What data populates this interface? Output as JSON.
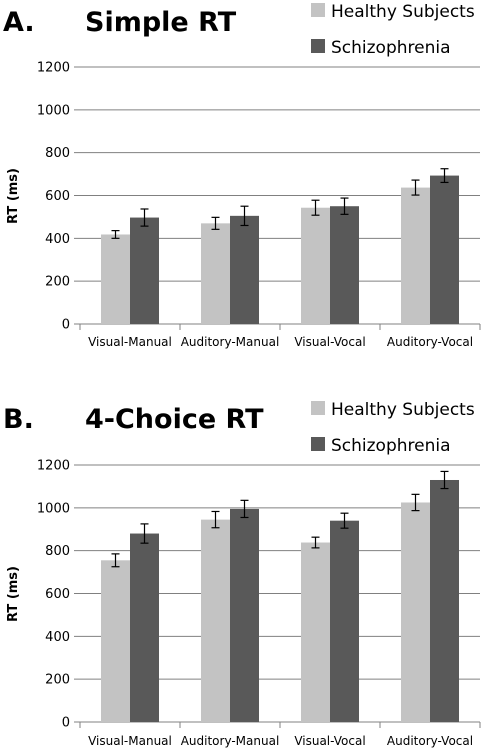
{
  "colors": {
    "healthy": "#c3c3c3",
    "schizophrenia": "#595959",
    "grid": "#808080"
  },
  "chart_data": [
    {
      "type": "bar",
      "panel_label": "A.",
      "title": "Simple RT",
      "ylabel": "RT (ms)",
      "xlabel": "",
      "ylim": [
        0,
        1200
      ],
      "yticks": [
        0,
        200,
        400,
        600,
        800,
        1000,
        1200
      ],
      "grid": true,
      "legend_position": "top-right",
      "categories": [
        "Visual-Manual",
        "Auditory-Manual",
        "Visual-Vocal",
        "Auditory-Vocal"
      ],
      "series": [
        {
          "name": "Healthy Subjects",
          "values": [
            418,
            470,
            543,
            637
          ],
          "errors": [
            18,
            28,
            35,
            35
          ]
        },
        {
          "name": "Schizophrenia",
          "values": [
            497,
            505,
            550,
            693
          ],
          "errors": [
            40,
            45,
            38,
            32
          ]
        }
      ]
    },
    {
      "type": "bar",
      "panel_label": "B.",
      "title": "4-Choice RT",
      "ylabel": "RT (ms)",
      "xlabel": "",
      "ylim": [
        0,
        1200
      ],
      "yticks": [
        0,
        200,
        400,
        600,
        800,
        1000,
        1200
      ],
      "grid": true,
      "legend_position": "top-right",
      "categories": [
        "Visual-Manual",
        "Auditory-Manual",
        "Visual-Vocal",
        "Auditory-Vocal"
      ],
      "series": [
        {
          "name": "Healthy Subjects",
          "values": [
            755,
            945,
            838,
            1025
          ],
          "errors": [
            30,
            38,
            25,
            38
          ]
        },
        {
          "name": "Schizophrenia",
          "values": [
            880,
            995,
            940,
            1130
          ],
          "errors": [
            45,
            40,
            35,
            40
          ]
        }
      ]
    }
  ]
}
